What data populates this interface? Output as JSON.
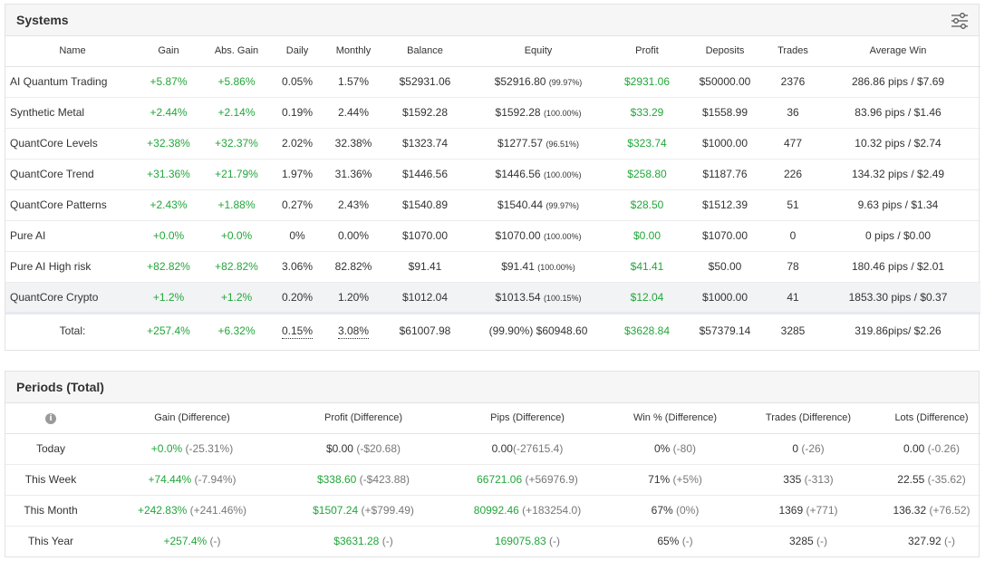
{
  "systems": {
    "title": "Systems",
    "columns": [
      "Name",
      "Gain",
      "Abs. Gain",
      "Daily",
      "Monthly",
      "Balance",
      "Equity",
      "Profit",
      "Deposits",
      "Trades",
      "Average Win"
    ],
    "rows": [
      {
        "name": "AI Quantum Trading",
        "gain": "+5.87%",
        "abs_gain": "+5.86%",
        "daily": "0.05%",
        "monthly": "1.57%",
        "balance": "$52931.06",
        "equity": "$52916.80",
        "equity_pct": "(99.97%)",
        "profit": "$2931.06",
        "deposits": "$50000.00",
        "trades": "2376",
        "avg_win": "286.86 pips / $7.69"
      },
      {
        "name": "Synthetic Metal",
        "gain": "+2.44%",
        "abs_gain": "+2.14%",
        "daily": "0.19%",
        "monthly": "2.44%",
        "balance": "$1592.28",
        "equity": "$1592.28",
        "equity_pct": "(100.00%)",
        "profit": "$33.29",
        "deposits": "$1558.99",
        "trades": "36",
        "avg_win": "83.96 pips / $1.46"
      },
      {
        "name": "QuantCore Levels",
        "gain": "+32.38%",
        "abs_gain": "+32.37%",
        "daily": "2.02%",
        "monthly": "32.38%",
        "balance": "$1323.74",
        "equity": "$1277.57",
        "equity_pct": "(96.51%)",
        "profit": "$323.74",
        "deposits": "$1000.00",
        "trades": "477",
        "avg_win": "10.32 pips / $2.74"
      },
      {
        "name": "QuantCore Trend",
        "gain": "+31.36%",
        "abs_gain": "+21.79%",
        "daily": "1.97%",
        "monthly": "31.36%",
        "balance": "$1446.56",
        "equity": "$1446.56",
        "equity_pct": "(100.00%)",
        "profit": "$258.80",
        "deposits": "$1187.76",
        "trades": "226",
        "avg_win": "134.32 pips / $2.49"
      },
      {
        "name": "QuantCore Patterns",
        "gain": "+2.43%",
        "abs_gain": "+1.88%",
        "daily": "0.27%",
        "monthly": "2.43%",
        "balance": "$1540.89",
        "equity": "$1540.44",
        "equity_pct": "(99.97%)",
        "profit": "$28.50",
        "deposits": "$1512.39",
        "trades": "51",
        "avg_win": "9.63 pips / $1.34"
      },
      {
        "name": "Pure AI",
        "gain": "+0.0%",
        "abs_gain": "+0.0%",
        "daily": "0%",
        "monthly": "0.00%",
        "balance": "$1070.00",
        "equity": "$1070.00",
        "equity_pct": "(100.00%)",
        "profit": "$0.00",
        "deposits": "$1070.00",
        "trades": "0",
        "avg_win": "0 pips / $0.00"
      },
      {
        "name": "Pure AI High risk",
        "gain": "+82.82%",
        "abs_gain": "+82.82%",
        "daily": "3.06%",
        "monthly": "82.82%",
        "balance": "$91.41",
        "equity": "$91.41",
        "equity_pct": "(100.00%)",
        "profit": "$41.41",
        "deposits": "$50.00",
        "trades": "78",
        "avg_win": "180.46 pips / $2.01"
      },
      {
        "name": "QuantCore Crypto",
        "gain": "+1.2%",
        "abs_gain": "+1.2%",
        "daily": "0.20%",
        "monthly": "1.20%",
        "balance": "$1012.04",
        "equity": "$1013.54",
        "equity_pct": "(100.15%)",
        "profit": "$12.04",
        "deposits": "$1000.00",
        "trades": "41",
        "avg_win": "1853.30 pips / $0.37"
      }
    ],
    "total": {
      "label": "Total:",
      "gain": "+257.4%",
      "abs_gain": "+6.32%",
      "daily": "0.15%",
      "monthly": "3.08%",
      "balance": "$61007.98",
      "equity": "(99.90%) $60948.60",
      "profit": "$3628.84",
      "deposits": "$57379.14",
      "trades": "3285",
      "avg_win": "319.86pips/ $2.26"
    }
  },
  "periods": {
    "title": "Periods (Total)",
    "info_icon": "i",
    "columns": [
      "Gain (Difference)",
      "Profit (Difference)",
      "Pips (Difference)",
      "Win % (Difference)",
      "Trades (Difference)",
      "Lots (Difference)"
    ],
    "rows": [
      {
        "label": "Today",
        "gain": "+0.0%",
        "gain_diff": "(-25.31%)",
        "profit": "$0.00",
        "profit_diff": "(-$20.68)",
        "pips": "0.00",
        "pips_diff": "(-27615.4)",
        "win": "0%",
        "win_diff": "(-80)",
        "trades": "0",
        "trades_diff": "(-26)",
        "lots": "0.00",
        "lots_diff": "(-0.26)"
      },
      {
        "label": "This Week",
        "gain": "+74.44%",
        "gain_diff": "(-7.94%)",
        "profit": "$338.60",
        "profit_diff": "(-$423.88)",
        "pips": "66721.06",
        "pips_diff": "(+56976.9)",
        "win": "71%",
        "win_diff": "(+5%)",
        "trades": "335",
        "trades_diff": "(-313)",
        "lots": "22.55",
        "lots_diff": "(-35.62)"
      },
      {
        "label": "This Month",
        "gain": "+242.83%",
        "gain_diff": "(+241.46%)",
        "profit": "$1507.24",
        "profit_diff": "(+$799.49)",
        "pips": "80992.46",
        "pips_diff": "(+183254.0)",
        "win": "67%",
        "win_diff": "(0%)",
        "trades": "1369",
        "trades_diff": "(+771)",
        "lots": "136.32",
        "lots_diff": "(+76.52)"
      },
      {
        "label": "This Year",
        "gain": "+257.4%",
        "gain_diff": "(-)",
        "profit": "$3631.28",
        "profit_diff": "(-)",
        "pips": "169075.83",
        "pips_diff": "(-)",
        "win": "65%",
        "win_diff": "(-)",
        "trades": "3285",
        "trades_diff": "(-)",
        "lots": "327.92",
        "lots_diff": "(-)"
      }
    ]
  },
  "colors": {
    "positive": "#22a63a",
    "header_bg": "#f6f6f6",
    "highlight_row": "#f2f3f5"
  },
  "icons": {
    "settings": "sliders-icon",
    "info": "info-icon"
  }
}
